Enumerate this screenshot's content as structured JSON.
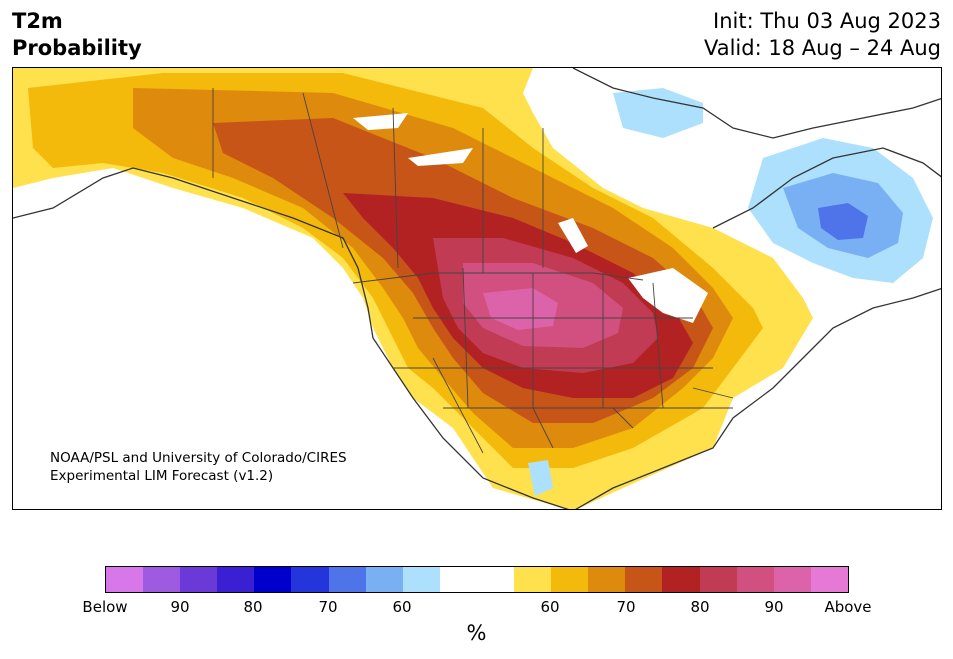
{
  "title": {
    "variable": "T2m",
    "subtitle": "Probability",
    "init": "Init: Thu 03 Aug 2023",
    "valid": "Valid: 18 Aug – 24 Aug"
  },
  "credit": {
    "line1": "NOAA/PSL and University of Colorado/CIRES",
    "line2": "Experimental LIM Forecast (v1.2)"
  },
  "colorbar": {
    "unit": "%",
    "colors": [
      "#d877ea",
      "#9e5ae0",
      "#6b39d8",
      "#3a1fd3",
      "#0000cd",
      "#2535dc",
      "#4f73e8",
      "#79b0f3",
      "#ade0fc",
      "#ffffff",
      "#ffffff",
      "#ffe14d",
      "#f3b90b",
      "#de8a0c",
      "#c75518",
      "#b22222",
      "#c23b55",
      "#d1507f",
      "#dc63a9",
      "#e678d6"
    ],
    "tick_labels": [
      "Below",
      "90",
      "80",
      "70",
      "60",
      "60",
      "70",
      "80",
      "90",
      "Above"
    ]
  },
  "map": {
    "colors": {
      "above_60": "#ffe14d",
      "above_65": "#f3b90b",
      "above_70": "#de8a0c",
      "above_75": "#c75518",
      "above_80": "#b22222",
      "above_85": "#c23b55",
      "above_90": "#d1507f",
      "above_95": "#dc63a9",
      "below_60": "#ade0fc",
      "below_65": "#79b0f3",
      "below_70": "#4f73e8"
    }
  }
}
